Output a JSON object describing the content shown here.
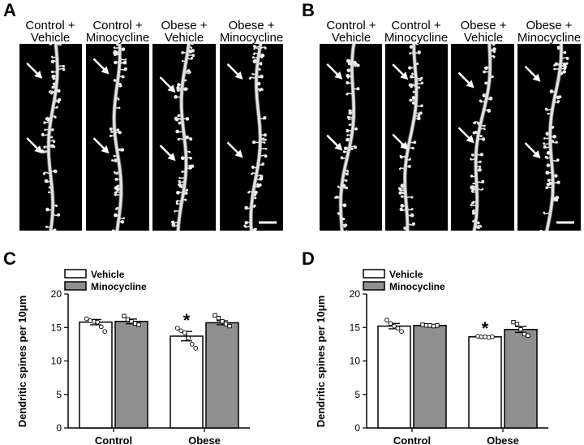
{
  "micrograph_panels": [
    {
      "letter": "A",
      "columns": [
        [
          "Control +",
          "Vehicle"
        ],
        [
          "Control +",
          "Minocycline"
        ],
        [
          "Obese +",
          "Vehicle"
        ],
        [
          "Obese +",
          "Minocycline"
        ]
      ]
    },
    {
      "letter": "B",
      "columns": [
        [
          "Control +",
          "Vehicle"
        ],
        [
          "Control +",
          "Minocycline"
        ],
        [
          "Obese +",
          "Vehicle"
        ],
        [
          "Obese +",
          "Minocycline"
        ]
      ]
    }
  ],
  "chart_data": [
    {
      "panel": "C",
      "type": "bar",
      "categories": [
        "Control",
        "Obese"
      ],
      "ylabel": "Dendritic spines per 10μm",
      "ylim": [
        0,
        20
      ],
      "yticks": [
        0,
        5,
        10,
        15,
        20
      ],
      "legend_position": "top-left",
      "series": [
        {
          "name": "Vehicle",
          "color": "#ffffff",
          "marker": "circle",
          "values": [
            15.8,
            13.7
          ],
          "errors": [
            0.4,
            0.7
          ],
          "points": [
            [
              16.3,
              16.0,
              15.9,
              15.8,
              15.1,
              14.4
            ],
            [
              14.9,
              14.5,
              14.2,
              13.4,
              12.5,
              11.9
            ]
          ]
        },
        {
          "name": "Minocycline",
          "color": "#8f8f8f",
          "marker": "square",
          "values": [
            15.9,
            15.7
          ],
          "errors": [
            0.35,
            0.3
          ],
          "points": [
            [
              16.7,
              16.2,
              15.9,
              15.6,
              15.4
            ],
            [
              16.8,
              16.4,
              15.9,
              15.5,
              15.2
            ]
          ]
        }
      ],
      "annotations": [
        {
          "text": "*",
          "category": "Obese",
          "series": "Vehicle"
        }
      ]
    },
    {
      "panel": "D",
      "type": "bar",
      "categories": [
        "Control",
        "Obese"
      ],
      "ylabel": "Dendritic spines per 10μm",
      "ylim": [
        0,
        20
      ],
      "yticks": [
        0,
        5,
        10,
        15,
        20
      ],
      "legend_position": "top-left",
      "series": [
        {
          "name": "Vehicle",
          "color": "#ffffff",
          "marker": "circle",
          "values": [
            15.2,
            13.6
          ],
          "errors": [
            0.4,
            0.1
          ],
          "points": [
            [
              16.1,
              15.6,
              15.2,
              14.9,
              14.4
            ],
            [
              13.7,
              13.6,
              13.6,
              13.5,
              13.6
            ]
          ]
        },
        {
          "name": "Minocycline",
          "color": "#8f8f8f",
          "marker": "square",
          "values": [
            15.3,
            14.7
          ],
          "errors": [
            0.15,
            0.45
          ],
          "points": [
            [
              15.4,
              15.3,
              15.3,
              15.2,
              15.3
            ],
            [
              15.8,
              15.5,
              14.7,
              14.0,
              13.8
            ]
          ]
        }
      ],
      "annotations": [
        {
          "text": "*",
          "category": "Obese",
          "series": "Vehicle"
        }
      ]
    }
  ]
}
